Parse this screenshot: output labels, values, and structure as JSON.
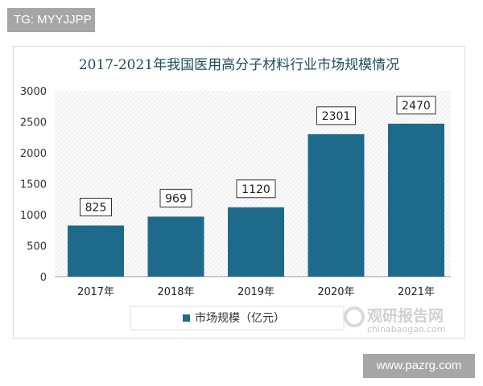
{
  "watermark_top": "TG: MYYJJPP",
  "watermark_bottom": "www.pazrg.com",
  "logo": {
    "cn": "观研报告网",
    "en": "chinabaogao.com"
  },
  "chart_data": {
    "type": "bar",
    "title": "2017-2021年我国医用高分子材料行业市场规模情况",
    "categories": [
      "2017年",
      "2018年",
      "2019年",
      "2020年",
      "2021年"
    ],
    "series": [
      {
        "name": "市场规模（亿元）",
        "values": [
          825,
          969,
          1120,
          2301,
          2470
        ]
      }
    ],
    "data_labels": [
      "825",
      "969",
      "1120",
      "2301",
      "2470"
    ],
    "yticks": [
      "0",
      "500",
      "1000",
      "1500",
      "2000",
      "2500",
      "3000"
    ],
    "ylim": [
      0,
      3000
    ],
    "grid": false,
    "legend": "bottom",
    "colors": {
      "bar": "#1e6a8a",
      "title": "#1f4e5f"
    }
  }
}
